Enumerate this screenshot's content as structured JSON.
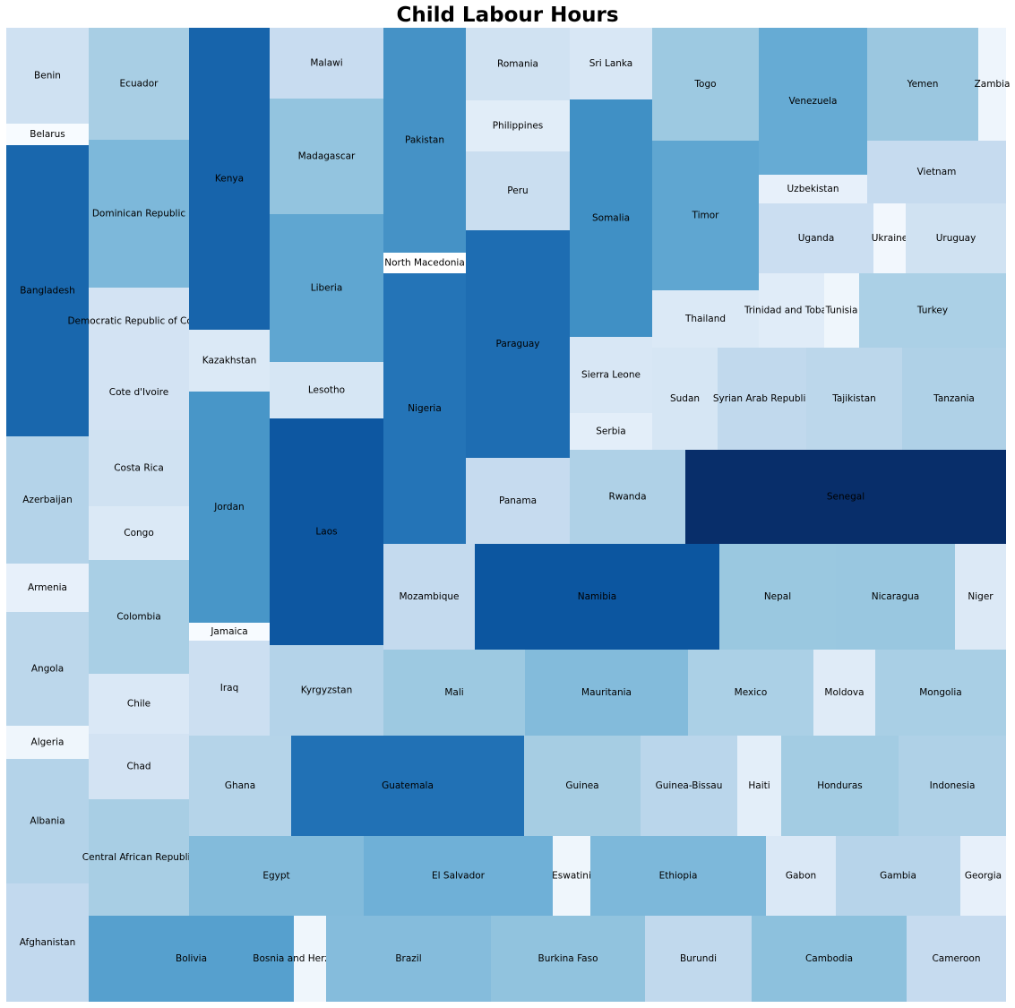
{
  "chart_data": {
    "type": "treemap",
    "title": "Child Labour Hours",
    "colormap": "Blues",
    "tiles": [
      {
        "label": "Benin",
        "color": "#cfe1f2"
      },
      {
        "label": "Belarus",
        "color": "#f7fbff"
      },
      {
        "label": "Bangladesh",
        "color": "#1967ad"
      },
      {
        "label": "Azerbaijan",
        "color": "#b4d3e9"
      },
      {
        "label": "Armenia",
        "color": "#e7f0fa"
      },
      {
        "label": "Angola",
        "color": "#bcd7eb"
      },
      {
        "label": "Algeria",
        "color": "#eff6fc"
      },
      {
        "label": "Albania",
        "color": "#b4d3e9"
      },
      {
        "label": "Afghanistan",
        "color": "#c2d9ee"
      },
      {
        "label": "Ecuador",
        "color": "#a8cee4"
      },
      {
        "label": "Dominican Republic",
        "color": "#7db8da"
      },
      {
        "label": "Democratic Republic of Congo",
        "color": "#d3e3f3"
      },
      {
        "label": "Cote d'Ivoire",
        "color": "#d3e3f3"
      },
      {
        "label": "Costa Rica",
        "color": "#d0e2f2"
      },
      {
        "label": "Congo",
        "color": "#dbe9f6"
      },
      {
        "label": "Colombia",
        "color": "#a9cfe5"
      },
      {
        "label": "Chile",
        "color": "#dae8f6"
      },
      {
        "label": "Chad",
        "color": "#d3e3f3"
      },
      {
        "label": "Central African Republic",
        "color": "#a8cee4"
      },
      {
        "label": "Kenya",
        "color": "#1764ab"
      },
      {
        "label": "Kazakhstan",
        "color": "#dbe9f6"
      },
      {
        "label": "Jordan",
        "color": "#4896c8"
      },
      {
        "label": "Jamaica",
        "color": "#f7fbff"
      },
      {
        "label": "Iraq",
        "color": "#ccdff1"
      },
      {
        "label": "Ghana",
        "color": "#b5d4e9"
      },
      {
        "label": "Malawi",
        "color": "#c8dcf0"
      },
      {
        "label": "Madagascar",
        "color": "#93c4df"
      },
      {
        "label": "Liberia",
        "color": "#5fa6d1"
      },
      {
        "label": "Lesotho",
        "color": "#d6e6f4"
      },
      {
        "label": "Laos",
        "color": "#0d57a1"
      },
      {
        "label": "Kyrgyzstan",
        "color": "#b4d3e9"
      },
      {
        "label": "Pakistan",
        "color": "#4592c6"
      },
      {
        "label": "North Macedonia",
        "color": "#ffffff"
      },
      {
        "label": "Nigeria",
        "color": "#2474b7"
      },
      {
        "label": "Romania",
        "color": "#d0e2f2"
      },
      {
        "label": "Philippines",
        "color": "#e1edf8"
      },
      {
        "label": "Peru",
        "color": "#cadef0"
      },
      {
        "label": "Paraguay",
        "color": "#1e6db2"
      },
      {
        "label": "Panama",
        "color": "#c6dbef"
      },
      {
        "label": "Sri Lanka",
        "color": "#d8e7f5"
      },
      {
        "label": "Somalia",
        "color": "#4090c5"
      },
      {
        "label": "Sierra Leone",
        "color": "#d8e7f5"
      },
      {
        "label": "Serbia",
        "color": "#e3eef9"
      },
      {
        "label": "Togo",
        "color": "#9dc9e1"
      },
      {
        "label": "Timor",
        "color": "#5fa6d1"
      },
      {
        "label": "Thailand",
        "color": "#dbe9f6"
      },
      {
        "label": "Venezuela",
        "color": "#66abd4"
      },
      {
        "label": "Uzbekistan",
        "color": "#e7f0fa"
      },
      {
        "label": "Yemen",
        "color": "#9bc7e0"
      },
      {
        "label": "Zambia",
        "color": "#eef5fc"
      },
      {
        "label": "Vietnam",
        "color": "#c6dbef"
      },
      {
        "label": "Uganda",
        "color": "#cbdef1"
      },
      {
        "label": "Ukraine",
        "color": "#f2f7fd"
      },
      {
        "label": "Uruguay",
        "color": "#d0e2f2"
      },
      {
        "label": "Trinidad and Tobago",
        "color": "#e0ecf8"
      },
      {
        "label": "Tunisia",
        "color": "#eff6fc"
      },
      {
        "label": "Turkey",
        "color": "#abd0e6"
      },
      {
        "label": "Sudan",
        "color": "#d6e6f4"
      },
      {
        "label": "Syrian Arab Republic",
        "color": "#c1d9ed"
      },
      {
        "label": "Tajikistan",
        "color": "#bcd7eb"
      },
      {
        "label": "Tanzania",
        "color": "#afd1e7"
      },
      {
        "label": "Senegal",
        "color": "#082e6a"
      },
      {
        "label": "Rwanda",
        "color": "#afd1e7"
      },
      {
        "label": "Mozambique",
        "color": "#c4daee"
      },
      {
        "label": "Namibia",
        "color": "#0c56a0"
      },
      {
        "label": "Nepal",
        "color": "#9ac8e0"
      },
      {
        "label": "Nicaragua",
        "color": "#99c7e0"
      },
      {
        "label": "Niger",
        "color": "#dce9f6"
      },
      {
        "label": "Mali",
        "color": "#9dc9e1"
      },
      {
        "label": "Mauritania",
        "color": "#83bbdb"
      },
      {
        "label": "Mexico",
        "color": "#abd0e6"
      },
      {
        "label": "Moldova",
        "color": "#dfebf7"
      },
      {
        "label": "Mongolia",
        "color": "#a9cfe5"
      },
      {
        "label": "Guatemala",
        "color": "#2171b5"
      },
      {
        "label": "Guinea",
        "color": "#a6cde3"
      },
      {
        "label": "Guinea-Bissau",
        "color": "#bad6eb"
      },
      {
        "label": "Haiti",
        "color": "#e3eef9"
      },
      {
        "label": "Honduras",
        "color": "#a3cce3"
      },
      {
        "label": "Indonesia",
        "color": "#afd1e7"
      },
      {
        "label": "Egypt",
        "color": "#83bbdb"
      },
      {
        "label": "El Salvador",
        "color": "#6fb0d7"
      },
      {
        "label": "Eswatini",
        "color": "#eff6fc"
      },
      {
        "label": "Ethiopia",
        "color": "#7db8da"
      },
      {
        "label": "Gabon",
        "color": "#dae8f6"
      },
      {
        "label": "Gambia",
        "color": "#b7d4ea"
      },
      {
        "label": "Georgia",
        "color": "#e7f0fa"
      },
      {
        "label": "Bolivia",
        "color": "#56a0ce"
      },
      {
        "label": "Bosnia and Herzegovina",
        "color": "#eff6fc"
      },
      {
        "label": "Brazil",
        "color": "#85bcdc"
      },
      {
        "label": "Burkina Faso",
        "color": "#91c3de"
      },
      {
        "label": "Burundi",
        "color": "#c1d9ed"
      },
      {
        "label": "Cambodia",
        "color": "#8dc1dd"
      },
      {
        "label": "Cameroon",
        "color": "#c6dbef"
      }
    ]
  }
}
